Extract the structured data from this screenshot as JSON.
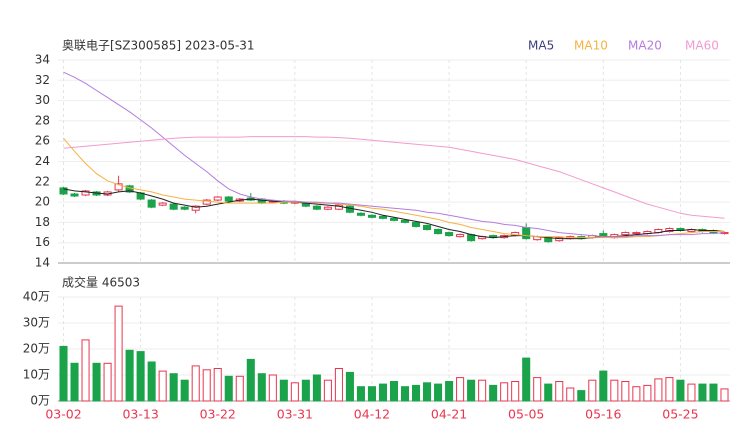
{
  "chart_data": {
    "type": "candlestick",
    "title": "奥联电子[SZ300585] 2023-05-31",
    "categories": [
      "03-02",
      null,
      null,
      null,
      null,
      null,
      null,
      "03-13",
      null,
      null,
      null,
      null,
      null,
      null,
      "03-22",
      null,
      null,
      null,
      null,
      null,
      null,
      "03-31",
      null,
      null,
      null,
      null,
      null,
      null,
      "04-12",
      null,
      null,
      null,
      null,
      null,
      null,
      "04-21",
      null,
      null,
      null,
      null,
      null,
      null,
      "05-05",
      null,
      null,
      null,
      null,
      null,
      null,
      "05-16",
      null,
      null,
      null,
      null,
      null,
      null,
      "05-25",
      null,
      null,
      null,
      null
    ],
    "open": [
      21.4,
      20.8,
      20.7,
      21.0,
      20.7,
      21.2,
      21.6,
      20.9,
      20.2,
      19.7,
      19.8,
      19.5,
      19.2,
      19.8,
      20.2,
      20.5,
      20.1,
      20.4,
      20.3,
      20.0,
      20.1,
      19.9,
      19.9,
      19.6,
      19.3,
      19.3,
      19.6,
      18.9,
      18.7,
      18.6,
      18.4,
      18.2,
      18.0,
      17.7,
      17.3,
      17.0,
      16.6,
      16.8,
      16.4,
      16.7,
      16.5,
      16.7,
      17.5,
      16.3,
      16.5,
      16.2,
      16.4,
      16.6,
      16.5,
      16.9,
      16.5,
      16.8,
      16.9,
      16.9,
      17.0,
      17.1,
      17.4,
      17.1,
      17.3,
      17.2,
      16.9
    ],
    "high": [
      21.5,
      20.9,
      21.2,
      21.1,
      21.1,
      22.6,
      21.7,
      21.0,
      20.3,
      20.0,
      19.9,
      19.6,
      19.7,
      20.3,
      20.6,
      20.6,
      20.4,
      20.9,
      20.4,
      20.2,
      20.2,
      20.1,
      20.0,
      19.7,
      19.6,
      19.8,
      19.7,
      19.0,
      18.8,
      18.7,
      18.5,
      18.3,
      18.1,
      17.8,
      17.4,
      17.1,
      16.9,
      16.9,
      16.7,
      16.8,
      16.8,
      17.1,
      17.9,
      16.7,
      16.6,
      16.6,
      16.7,
      16.7,
      16.8,
      17.2,
      16.9,
      17.1,
      17.1,
      17.2,
      17.4,
      17.5,
      17.5,
      17.4,
      17.4,
      17.3,
      17.1
    ],
    "low": [
      20.7,
      20.5,
      20.6,
      20.6,
      20.6,
      21.0,
      20.9,
      20.2,
      19.4,
      19.6,
      19.2,
      19.2,
      18.9,
      19.7,
      20.1,
      20.0,
      20.0,
      20.1,
      19.8,
      19.9,
      19.8,
      19.8,
      19.5,
      19.2,
      19.2,
      19.2,
      18.9,
      18.6,
      18.4,
      18.3,
      18.1,
      17.9,
      17.5,
      17.2,
      16.8,
      16.6,
      16.5,
      16.1,
      16.3,
      16.4,
      16.4,
      16.6,
      16.3,
      16.2,
      16.0,
      16.1,
      16.3,
      16.3,
      16.4,
      16.5,
      16.4,
      16.7,
      16.8,
      16.8,
      16.9,
      17.0,
      17.1,
      17.0,
      17.0,
      16.9,
      16.8
    ],
    "close": [
      20.8,
      20.6,
      21.1,
      20.7,
      21.0,
      21.8,
      21.0,
      20.3,
      19.5,
      19.9,
      19.3,
      19.3,
      19.6,
      20.2,
      20.5,
      20.1,
      20.3,
      20.2,
      19.9,
      20.1,
      19.9,
      20.0,
      19.6,
      19.3,
      19.5,
      19.7,
      19.0,
      18.7,
      18.5,
      18.4,
      18.2,
      18.0,
      17.6,
      17.3,
      16.9,
      16.7,
      16.8,
      16.2,
      16.6,
      16.5,
      16.7,
      17.0,
      16.4,
      16.6,
      16.1,
      16.5,
      16.6,
      16.4,
      16.7,
      16.6,
      16.8,
      17.0,
      17.0,
      17.1,
      17.3,
      17.4,
      17.2,
      17.3,
      17.1,
      17.0,
      17.0
    ],
    "up_color": "#e8364f",
    "down_color": "#1aa34a",
    "series": [
      {
        "name": "MA5",
        "color": "#222222",
        "values": [
          21.3,
          21.1,
          21.0,
          20.9,
          20.8,
          21.0,
          21.1,
          20.9,
          20.6,
          20.3,
          19.9,
          19.7,
          19.5,
          19.6,
          19.8,
          20.0,
          20.2,
          20.3,
          20.2,
          20.1,
          20.0,
          20.0,
          19.9,
          19.8,
          19.7,
          19.6,
          19.4,
          19.2,
          19.0,
          18.7,
          18.5,
          18.3,
          18.1,
          17.9,
          17.6,
          17.3,
          17.1,
          16.8,
          16.6,
          16.5,
          16.6,
          16.7,
          16.7,
          16.6,
          16.5,
          16.4,
          16.4,
          16.4,
          16.5,
          16.6,
          16.6,
          16.7,
          16.8,
          16.9,
          17.0,
          17.2,
          17.2,
          17.3,
          17.2,
          17.2,
          17.1
        ]
      },
      {
        "name": "MA10",
        "color": "#f5b342",
        "values": [
          26.3,
          25.0,
          23.8,
          22.8,
          22.1,
          21.7,
          21.4,
          21.2,
          21.0,
          20.7,
          20.5,
          20.3,
          20.2,
          20.1,
          20.0,
          19.9,
          19.9,
          19.9,
          19.9,
          19.9,
          20.0,
          20.0,
          20.0,
          19.9,
          19.9,
          19.8,
          19.7,
          19.6,
          19.4,
          19.3,
          19.1,
          18.9,
          18.7,
          18.5,
          18.3,
          18.0,
          17.8,
          17.5,
          17.3,
          17.1,
          16.9,
          16.8,
          16.7,
          16.6,
          16.6,
          16.6,
          16.5,
          16.5,
          16.5,
          16.5,
          16.5,
          16.5,
          16.6,
          16.6,
          16.7,
          16.8,
          16.9,
          17.0,
          17.1,
          17.1,
          17.1
        ]
      },
      {
        "name": "MA20",
        "color": "#b57ce0",
        "values": [
          32.8,
          32.3,
          31.7,
          31.0,
          30.3,
          29.6,
          28.9,
          28.1,
          27.3,
          26.4,
          25.5,
          24.6,
          23.8,
          23.0,
          22.1,
          21.3,
          20.8,
          20.5,
          20.3,
          20.2,
          20.1,
          20.1,
          20.0,
          20.0,
          19.9,
          19.9,
          19.8,
          19.7,
          19.6,
          19.5,
          19.4,
          19.3,
          19.2,
          19.0,
          18.9,
          18.7,
          18.5,
          18.3,
          18.1,
          18.0,
          17.8,
          17.7,
          17.5,
          17.4,
          17.2,
          17.0,
          16.9,
          16.8,
          16.7,
          16.6,
          16.6,
          16.6,
          16.7,
          16.7,
          16.7,
          16.8,
          16.8,
          16.8,
          16.9,
          16.9,
          17.0
        ]
      },
      {
        "name": "MA60",
        "color": "#f29bd0",
        "values": [
          25.3,
          25.4,
          25.5,
          25.6,
          25.7,
          25.8,
          25.9,
          26.0,
          26.1,
          26.2,
          26.3,
          26.35,
          26.4,
          26.4,
          26.4,
          26.4,
          26.4,
          26.45,
          26.45,
          26.45,
          26.45,
          26.45,
          26.45,
          26.4,
          26.4,
          26.35,
          26.3,
          26.2,
          26.1,
          26.0,
          25.9,
          25.8,
          25.7,
          25.6,
          25.5,
          25.4,
          25.2,
          25.0,
          24.8,
          24.6,
          24.4,
          24.2,
          23.9,
          23.6,
          23.3,
          23.0,
          22.6,
          22.2,
          21.8,
          21.4,
          21.0,
          20.6,
          20.2,
          19.8,
          19.5,
          19.2,
          18.9,
          18.7,
          18.6,
          18.5,
          18.4
        ]
      }
    ],
    "ylim": [
      14,
      34
    ],
    "yticks": [
      14,
      16,
      18,
      20,
      22,
      24,
      26,
      28,
      30,
      32,
      34
    ],
    "grid": true,
    "volume": {
      "type": "bar",
      "title": "成交量 46503",
      "values": [
        21,
        14.5,
        23.5,
        14.5,
        14.5,
        36.5,
        19.5,
        19,
        15,
        11.5,
        10.5,
        8,
        13.5,
        12,
        12.5,
        9.5,
        9.5,
        16,
        10.5,
        10,
        8,
        7,
        8,
        10,
        8,
        12.5,
        11,
        5.5,
        5.5,
        6.5,
        7.5,
        5.5,
        6,
        7,
        6.5,
        7.5,
        9,
        8,
        8,
        6,
        7,
        7.5,
        16.5,
        9,
        6.5,
        7.5,
        5,
        4,
        8,
        11.5,
        8,
        7.5,
        5.5,
        6,
        8.5,
        9,
        8,
        6.5,
        6.5,
        6.5,
        4.6503
      ],
      "ylim": [
        0,
        40
      ],
      "yticks": [
        {
          "value": 0,
          "label": "0万"
        },
        {
          "value": 10,
          "label": "10万"
        },
        {
          "value": 20,
          "label": "20万"
        },
        {
          "value": 30,
          "label": "30万"
        },
        {
          "value": 40,
          "label": "40万"
        }
      ]
    }
  }
}
